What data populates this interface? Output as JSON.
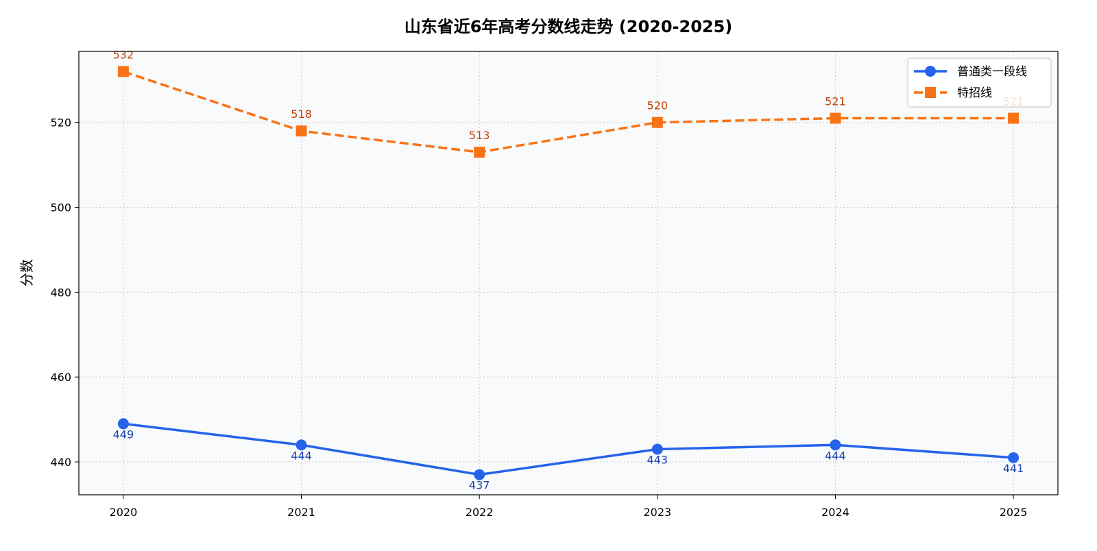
{
  "chart_data": {
    "type": "line",
    "title": "山东省近6年高考分数线走势 (2020-2025)",
    "xlabel": "",
    "ylabel": "分数",
    "x": [
      2020,
      2021,
      2022,
      2023,
      2024,
      2025
    ],
    "xticks": [
      "2020",
      "2021",
      "2022",
      "2023",
      "2024",
      "2025"
    ],
    "yticks": [
      440,
      460,
      480,
      500,
      520
    ],
    "xlim": [
      2019.75,
      2025.25
    ],
    "ylim": [
      432.25,
      536.75
    ],
    "grid": true,
    "legend_position": "top-right",
    "background": "#f8fafc",
    "series": [
      {
        "name": "普通类一段线",
        "values": [
          449,
          444,
          437,
          443,
          444,
          441
        ],
        "color": "#2563eb",
        "label_color": "#1e40af",
        "marker": "circle",
        "linestyle": "solid"
      },
      {
        "name": "特招线",
        "values": [
          532,
          518,
          513,
          520,
          521,
          521
        ],
        "color": "#f97316",
        "label_color": "#c2410c",
        "marker": "square",
        "linestyle": "dashed"
      }
    ]
  }
}
